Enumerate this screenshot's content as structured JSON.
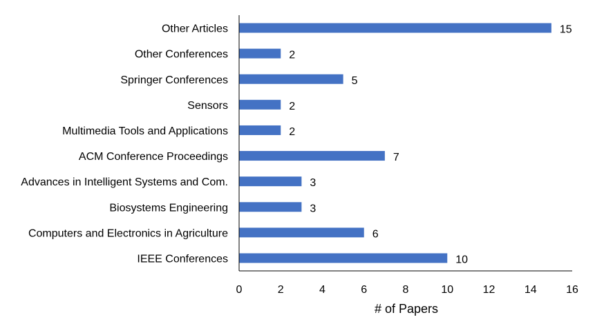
{
  "chart_data": {
    "type": "bar",
    "orientation": "horizontal",
    "categories": [
      "Other Articles",
      "Other Conferences",
      "Springer Conferences",
      "Sensors",
      "Multimedia Tools and Applications",
      "ACM Conference Proceedings",
      "Advances in Intelligent Systems and Com.",
      "Biosystems Engineering",
      "Computers and Electronics in Agriculture",
      "IEEE Conferences"
    ],
    "values": [
      15,
      2,
      5,
      2,
      2,
      7,
      3,
      3,
      6,
      10
    ],
    "xlabel": "# of Papers",
    "ylabel": "",
    "xlim": [
      0,
      16
    ],
    "x_ticks": [
      "0",
      "2",
      "4",
      "6",
      "8",
      "10",
      "12",
      "14",
      "16"
    ],
    "grid": false,
    "data_labels": true,
    "bar_color": "#4472C4"
  }
}
